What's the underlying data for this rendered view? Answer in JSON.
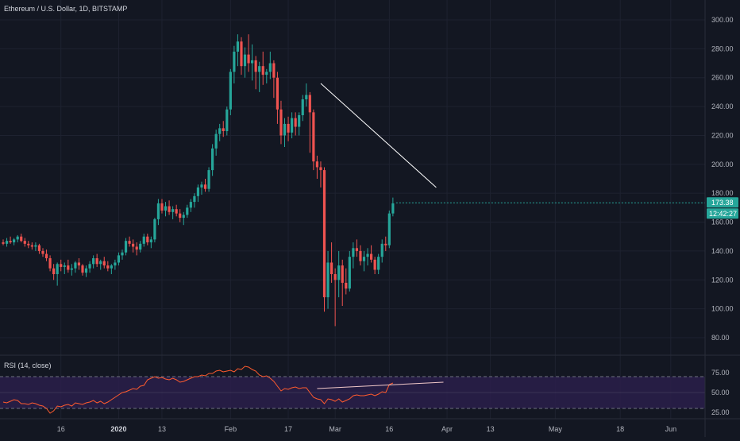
{
  "header": {
    "title": "Ethereum / U.S. Dollar, 1D, BITSTAMP"
  },
  "price_axis": {
    "ticks": [
      "300.00",
      "280.00",
      "260.00",
      "240.00",
      "220.00",
      "200.00",
      "180.00",
      "160.00",
      "140.00",
      "120.00",
      "100.00",
      "80.00"
    ],
    "tick_values": [
      300,
      280,
      260,
      240,
      220,
      200,
      180,
      160,
      140,
      120,
      100,
      80
    ]
  },
  "last_price": {
    "value_label": "173.38",
    "countdown_label": "12:42:27",
    "value": 173.38,
    "badge_color": "#26a69a"
  },
  "rsi_panel": {
    "title": "RSI (14, close)",
    "ticks": [
      "75.00",
      "50.00",
      "25.00"
    ],
    "tick_values": [
      75,
      50,
      25
    ],
    "upper": 70,
    "lower": 30,
    "band_color": "#2a1f4a",
    "line_color": "#ff5b2e"
  },
  "date_axis": {
    "labels": [
      {
        "text": "16",
        "bar": 16,
        "major": false
      },
      {
        "text": "2020",
        "bar": 32,
        "major": true
      },
      {
        "text": "13",
        "bar": 44,
        "major": false
      },
      {
        "text": "Feb",
        "bar": 63,
        "major": false
      },
      {
        "text": "17",
        "bar": 79,
        "major": false
      },
      {
        "text": "Mar",
        "bar": 92,
        "major": false
      },
      {
        "text": "16",
        "bar": 107,
        "major": false
      },
      {
        "text": "Apr",
        "bar": 123,
        "major": false
      },
      {
        "text": "13",
        "bar": 135,
        "major": false
      },
      {
        "text": "May",
        "bar": 153,
        "major": false
      },
      {
        "text": "18",
        "bar": 171,
        "major": false
      },
      {
        "text": "Jun",
        "bar": 185,
        "major": false
      }
    ]
  },
  "colors": {
    "background": "#131722",
    "grid": "#1e2230",
    "up": "#26a69a",
    "down": "#ef5350",
    "trendline": "#ffffff"
  },
  "chart_data": {
    "type": "candlestick",
    "title": "Ethereum / U.S. Dollar, 1D, BITSTAMP",
    "y_range": [
      72,
      310
    ],
    "candles": [
      [
        146,
        148,
        144,
        145
      ],
      [
        145,
        149,
        143,
        147
      ],
      [
        147,
        150,
        145,
        146
      ],
      [
        146,
        149,
        144,
        148
      ],
      [
        148,
        151,
        146,
        150
      ],
      [
        150,
        152,
        146,
        147
      ],
      [
        147,
        149,
        143,
        145
      ],
      [
        145,
        147,
        142,
        144
      ],
      [
        144,
        146,
        141,
        143
      ],
      [
        143,
        146,
        140,
        144
      ],
      [
        144,
        145,
        138,
        140
      ],
      [
        140,
        142,
        136,
        138
      ],
      [
        138,
        141,
        133,
        135
      ],
      [
        135,
        137,
        126,
        128
      ],
      [
        128,
        131,
        120,
        124
      ],
      [
        124,
        132,
        116,
        131
      ],
      [
        131,
        134,
        126,
        129
      ],
      [
        129,
        132,
        124,
        130
      ],
      [
        130,
        134,
        125,
        127
      ],
      [
        127,
        131,
        123,
        128
      ],
      [
        128,
        133,
        125,
        132
      ],
      [
        132,
        135,
        127,
        130
      ],
      [
        130,
        131,
        123,
        125
      ],
      [
        125,
        130,
        122,
        128
      ],
      [
        128,
        133,
        125,
        131
      ],
      [
        131,
        137,
        128,
        135
      ],
      [
        135,
        138,
        129,
        131
      ],
      [
        131,
        134,
        127,
        133
      ],
      [
        133,
        136,
        128,
        130
      ],
      [
        130,
        133,
        126,
        128
      ],
      [
        128,
        131,
        124,
        130
      ],
      [
        130,
        134,
        127,
        132
      ],
      [
        132,
        139,
        130,
        137
      ],
      [
        137,
        141,
        134,
        139
      ],
      [
        139,
        149,
        137,
        147
      ],
      [
        147,
        150,
        143,
        145
      ],
      [
        145,
        148,
        139,
        143
      ],
      [
        143,
        146,
        137,
        141
      ],
      [
        141,
        147,
        139,
        145
      ],
      [
        145,
        152,
        143,
        150
      ],
      [
        150,
        152,
        144,
        146
      ],
      [
        146,
        150,
        142,
        148
      ],
      [
        148,
        163,
        146,
        162
      ],
      [
        162,
        176,
        158,
        173
      ],
      [
        173,
        176,
        166,
        168
      ],
      [
        168,
        174,
        164,
        171
      ],
      [
        171,
        175,
        165,
        167
      ],
      [
        167,
        171,
        162,
        169
      ],
      [
        169,
        172,
        164,
        166
      ],
      [
        166,
        169,
        160,
        163
      ],
      [
        163,
        167,
        158,
        165
      ],
      [
        165,
        172,
        163,
        170
      ],
      [
        170,
        176,
        167,
        174
      ],
      [
        174,
        180,
        170,
        178
      ],
      [
        178,
        186,
        174,
        184
      ],
      [
        184,
        188,
        179,
        186
      ],
      [
        186,
        190,
        181,
        183
      ],
      [
        183,
        198,
        181,
        196
      ],
      [
        196,
        214,
        192,
        211
      ],
      [
        211,
        224,
        206,
        221
      ],
      [
        221,
        228,
        216,
        225
      ],
      [
        225,
        230,
        219,
        223
      ],
      [
        223,
        240,
        220,
        238
      ],
      [
        238,
        266,
        234,
        264
      ],
      [
        264,
        282,
        256,
        278
      ],
      [
        278,
        290,
        268,
        285
      ],
      [
        285,
        288,
        262,
        268
      ],
      [
        268,
        281,
        260,
        276
      ],
      [
        276,
        290,
        264,
        270
      ],
      [
        270,
        283,
        258,
        272
      ],
      [
        272,
        275,
        252,
        264
      ],
      [
        264,
        271,
        250,
        268
      ],
      [
        268,
        278,
        255,
        262
      ],
      [
        262,
        266,
        256,
        264
      ],
      [
        264,
        278,
        259,
        270
      ],
      [
        270,
        272,
        246,
        260
      ],
      [
        260,
        264,
        228,
        238
      ],
      [
        238,
        244,
        214,
        220
      ],
      [
        220,
        232,
        212,
        228
      ],
      [
        228,
        233,
        216,
        222
      ],
      [
        222,
        236,
        218,
        232
      ],
      [
        232,
        236,
        220,
        226
      ],
      [
        226,
        236,
        220,
        234
      ],
      [
        234,
        248,
        230,
        245
      ],
      [
        245,
        256,
        240,
        248
      ],
      [
        248,
        250,
        208,
        236
      ],
      [
        236,
        238,
        196,
        202
      ],
      [
        202,
        206,
        190,
        198
      ],
      [
        198,
        202,
        184,
        196
      ],
      [
        196,
        198,
        98,
        108
      ],
      [
        108,
        140,
        100,
        132
      ],
      [
        132,
        146,
        118,
        124
      ],
      [
        124,
        128,
        88,
        120
      ],
      [
        120,
        140,
        108,
        130
      ],
      [
        130,
        134,
        102,
        118
      ],
      [
        118,
        128,
        110,
        114
      ],
      [
        114,
        140,
        112,
        136
      ],
      [
        136,
        146,
        128,
        142
      ],
      [
        142,
        148,
        136,
        140
      ],
      [
        140,
        144,
        130,
        133
      ],
      [
        133,
        140,
        126,
        136
      ],
      [
        136,
        142,
        130,
        138
      ],
      [
        138,
        144,
        132,
        134
      ],
      [
        134,
        136,
        124,
        127
      ],
      [
        127,
        138,
        124,
        136
      ],
      [
        136,
        148,
        132,
        145
      ],
      [
        145,
        150,
        140,
        144
      ],
      [
        144,
        168,
        142,
        166
      ],
      [
        166,
        177,
        164,
        173
      ]
    ],
    "trendline": [
      [
        88,
        256
      ],
      [
        120,
        184
      ]
    ],
    "rsi": {
      "name": "RSI (14, close)",
      "values": [
        38,
        37,
        39,
        41,
        40,
        36,
        36,
        35,
        37,
        36,
        34,
        33,
        30,
        24,
        27,
        33,
        32,
        34,
        35,
        33,
        37,
        36,
        35,
        37,
        38,
        40,
        37,
        39,
        36,
        38,
        41,
        44,
        47,
        50,
        51,
        53,
        55,
        54,
        58,
        59,
        66,
        68,
        70,
        68,
        69,
        67,
        66,
        68,
        66,
        63,
        64,
        66,
        68,
        70,
        70,
        72,
        71,
        74,
        74,
        77,
        78,
        76,
        77,
        78,
        76,
        80,
        79,
        83,
        82,
        79,
        77,
        72,
        70,
        71,
        68,
        64,
        58,
        52,
        55,
        54,
        56,
        57,
        55,
        56,
        56,
        50,
        44,
        42,
        41,
        36,
        42,
        41,
        39,
        42,
        38,
        40,
        42,
        46,
        47,
        46,
        46,
        47,
        48,
        46,
        48,
        51,
        50,
        60,
        62
      ]
    },
    "rsi_trendline": [
      [
        87,
        55
      ],
      [
        122,
        63
      ]
    ]
  }
}
